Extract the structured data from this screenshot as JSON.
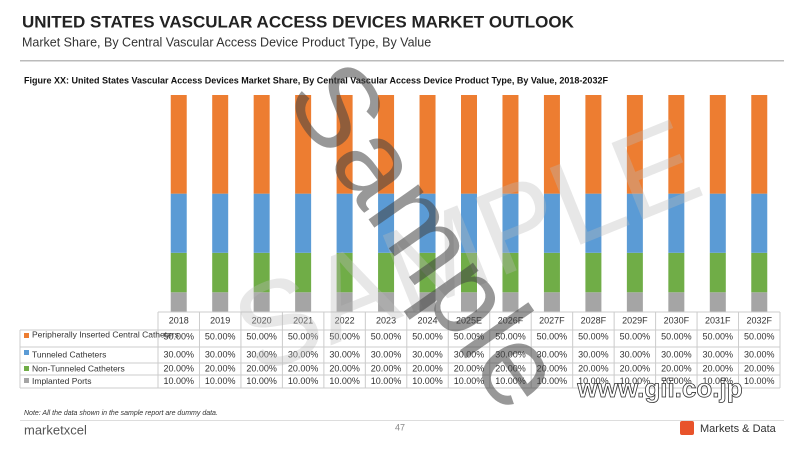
{
  "header": {
    "title": "UNITED STATES VASCULAR ACCESS DEVICES MARKET OUTLOOK",
    "subtitle": "Market Share, By Central Vascular Access Device Product Type, By Value"
  },
  "chart_data": {
    "type": "stacked_bar",
    "title": "Figure XX: United States Vascular Access Devices Market Share, By Central Vascular Access Device Product Type, By Value, 2018-2032F",
    "categories": [
      "2018",
      "2019",
      "2020",
      "2021",
      "2022",
      "2023",
      "2024",
      "2025E",
      "2026F",
      "2027F",
      "2028F",
      "2029F",
      "2030F",
      "2031F",
      "2032F"
    ],
    "series": [
      {
        "name": "Implanted Ports",
        "color": "#a5a5a5",
        "values": [
          10,
          10,
          10,
          10,
          10,
          10,
          10,
          10,
          10,
          10,
          10,
          10,
          10,
          10,
          10
        ],
        "value_labels": [
          "10.00%",
          "10.00%",
          "10.00%",
          "10.00%",
          "10.00%",
          "10.00%",
          "10.00%",
          "10.00%",
          "10.00%",
          "10.00%",
          "10.00%",
          "10.00%",
          "10.00%",
          "10.00%",
          "10.00%"
        ]
      },
      {
        "name": "Non-Tunneled Catheters",
        "color": "#70ad47",
        "values": [
          20,
          20,
          20,
          20,
          20,
          20,
          20,
          20,
          20,
          20,
          20,
          20,
          20,
          20,
          20
        ],
        "value_labels": [
          "20.00%",
          "20.00%",
          "20.00%",
          "20.00%",
          "20.00%",
          "20.00%",
          "20.00%",
          "20.00%",
          "20.00%",
          "20.00%",
          "20.00%",
          "20.00%",
          "20.00%",
          "20.00%",
          "20.00%"
        ]
      },
      {
        "name": "Tunneled Catheters",
        "color": "#5b9bd5",
        "values": [
          30,
          30,
          30,
          30,
          30,
          30,
          30,
          30,
          30,
          30,
          30,
          30,
          30,
          30,
          30
        ],
        "value_labels": [
          "30.00%",
          "30.00%",
          "30.00%",
          "30.00%",
          "30.00%",
          "30.00%",
          "30.00%",
          "30.00%",
          "30.00%",
          "30.00%",
          "30.00%",
          "30.00%",
          "30.00%",
          "30.00%",
          "30.00%"
        ]
      },
      {
        "name": "Peripherally Inserted Central Catheters",
        "color": "#ed7d31",
        "values": [
          50,
          50,
          50,
          50,
          50,
          50,
          50,
          50,
          50,
          50,
          50,
          50,
          50,
          50,
          50
        ],
        "value_labels": [
          "50.00%",
          "50.00%",
          "50.00%",
          "50.00%",
          "50.00%",
          "50.00%",
          "50.00%",
          "50.00%",
          "50.00%",
          "50.00%",
          "50.00%",
          "50.00%",
          "50.00%",
          "50.00%",
          "50.00%"
        ]
      }
    ]
  },
  "footer": {
    "note": "Note: All the data shown in the sample report are dummy data.",
    "brand": "marketxcel",
    "page": "47",
    "partner": "Markets & Data",
    "site": "www.gii.co.jp"
  },
  "watermark": {
    "large": "SAMPLE",
    "main": "Sample"
  }
}
